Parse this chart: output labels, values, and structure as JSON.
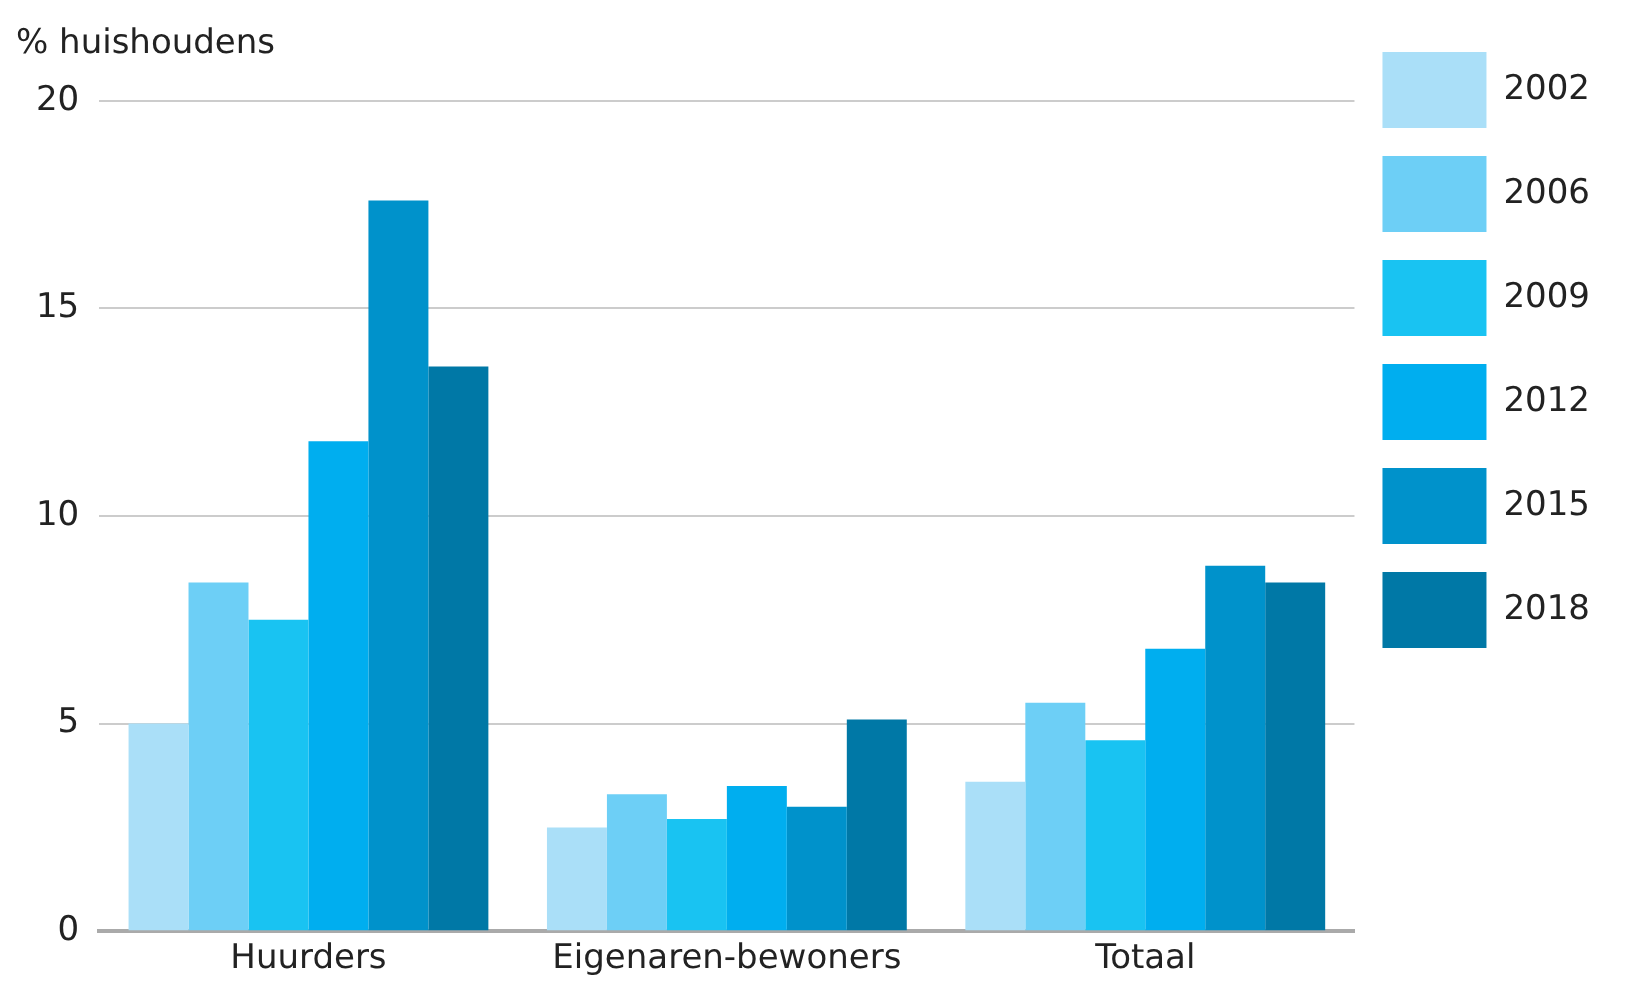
{
  "chart_data": {
    "type": "bar",
    "ylabel": "% huishoudens",
    "categories": [
      "Huurders",
      "Eigenaren-bewoners",
      "Totaal"
    ],
    "series": [
      {
        "name": "2002",
        "color": "#aadff8",
        "values": [
          5.0,
          2.5,
          3.6
        ]
      },
      {
        "name": "2006",
        "color": "#6dcff6",
        "values": [
          8.4,
          3.3,
          5.5
        ]
      },
      {
        "name": "2009",
        "color": "#19c3f2",
        "values": [
          7.5,
          2.7,
          4.6
        ]
      },
      {
        "name": "2012",
        "color": "#00aeef",
        "values": [
          11.8,
          3.5,
          6.8
        ]
      },
      {
        "name": "2015",
        "color": "#0092cb",
        "values": [
          17.6,
          3.0,
          8.8
        ]
      },
      {
        "name": "2018",
        "color": "#0078a6",
        "values": [
          13.6,
          5.1,
          8.4
        ]
      }
    ],
    "ylim": [
      0,
      20
    ],
    "yticks": [
      0,
      5,
      10,
      15,
      20
    ],
    "grid": "y",
    "legend": "right"
  }
}
